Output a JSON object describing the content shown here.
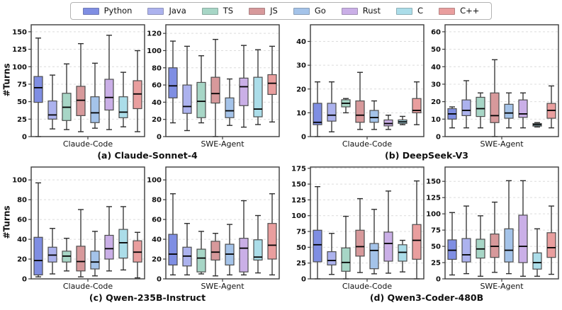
{
  "chart_data": {
    "type": "boxplot",
    "ylabel": "#Turns",
    "legend": {
      "position": "top-center",
      "items": [
        {
          "label": "Python",
          "color": "#7f8ee3"
        },
        {
          "label": "Java",
          "color": "#acb2ee"
        },
        {
          "label": "TS",
          "color": "#a7d6c6"
        },
        {
          "label": "JS",
          "color": "#d7999b"
        },
        {
          "label": "Go",
          "color": "#a4c3e9"
        },
        {
          "label": "Rust",
          "color": "#caafe7"
        },
        {
          "label": "C",
          "color": "#abdde9"
        },
        {
          "label": "C++",
          "color": "#e99e9e"
        }
      ]
    },
    "style": {
      "box_edge": "#4d4d4d",
      "median_color": "#000000",
      "whisker_color": "#2e2e2e",
      "grid_color": "#dcdcdc",
      "spine_color": "#3c3c3c"
    },
    "subplots": [
      {
        "title": "(a) Claude-Sonnet-4",
        "panels": [
          {
            "xlabel": "Claude-Code",
            "ymax": 160,
            "yticks": [
              0,
              25,
              50,
              75,
              100,
              125,
              150
            ],
            "boxes": [
              {
                "lang": "Python",
                "lo": 0,
                "q1": 49,
                "med": 70,
                "q3": 86,
                "hi": 141
              },
              {
                "lang": "Java",
                "lo": 11,
                "q1": 25,
                "med": 31,
                "q3": 51,
                "hi": 88
              },
              {
                "lang": "TS",
                "lo": 10,
                "q1": 23,
                "med": 42,
                "q3": 62,
                "hi": 104
              },
              {
                "lang": "JS",
                "lo": 7,
                "q1": 30,
                "med": 52,
                "q3": 72,
                "hi": 133
              },
              {
                "lang": "Go",
                "lo": 12,
                "q1": 20,
                "med": 34,
                "q3": 57,
                "hi": 105
              },
              {
                "lang": "Rust",
                "lo": 10,
                "q1": 38,
                "med": 56,
                "q3": 82,
                "hi": 145
              },
              {
                "lang": "C",
                "lo": 14,
                "q1": 27,
                "med": 35,
                "q3": 57,
                "hi": 92
              },
              {
                "lang": "C++",
                "lo": 7,
                "q1": 40,
                "med": 61,
                "q3": 80,
                "hi": 123
              }
            ]
          },
          {
            "xlabel": "SWE-Agent",
            "ymax": 130,
            "yticks": [
              0,
              20,
              40,
              60,
              80,
              100,
              120
            ],
            "boxes": [
              {
                "lang": "Python",
                "lo": 16,
                "q1": 45,
                "med": 59,
                "q3": 80,
                "hi": 111
              },
              {
                "lang": "Java",
                "lo": 7,
                "q1": 27,
                "med": 35,
                "q3": 60,
                "hi": 105
              },
              {
                "lang": "TS",
                "lo": 16,
                "q1": 22,
                "med": 41,
                "q3": 63,
                "hi": 94
              },
              {
                "lang": "JS",
                "lo": 0,
                "q1": 39,
                "med": 50,
                "q3": 69,
                "hi": 113
              },
              {
                "lang": "Go",
                "lo": 13,
                "q1": 22,
                "med": 30,
                "q3": 45,
                "hi": 67
              },
              {
                "lang": "Rust",
                "lo": 11,
                "q1": 36,
                "med": 58,
                "q3": 68,
                "hi": 106
              },
              {
                "lang": "C",
                "lo": 14,
                "q1": 23,
                "med": 32,
                "q3": 69,
                "hi": 101
              },
              {
                "lang": "C++",
                "lo": 17,
                "q1": 49,
                "med": 62,
                "q3": 72,
                "hi": 105
              }
            ]
          }
        ]
      },
      {
        "title": "(b) DeepSeek-V3",
        "panels": [
          {
            "xlabel": "Claude-Code",
            "ymax": 47,
            "yticks": [
              0,
              10,
              20,
              30,
              40
            ],
            "boxes": [
              {
                "lang": "Python",
                "lo": 0,
                "q1": 5,
                "med": 6,
                "q3": 14,
                "hi": 23
              },
              {
                "lang": "Java",
                "lo": 2,
                "q1": 6.5,
                "med": 9,
                "q3": 14,
                "hi": 23
              },
              {
                "lang": "TS",
                "lo": 10,
                "q1": 12.5,
                "med": 14,
                "q3": 15.5,
                "hi": 16
              },
              {
                "lang": "JS",
                "lo": 3,
                "q1": 6,
                "med": 9,
                "q3": 15,
                "hi": 27
              },
              {
                "lang": "Go",
                "lo": 3,
                "q1": 6,
                "med": 8,
                "q3": 11,
                "hi": 15
              },
              {
                "lang": "Rust",
                "lo": 3,
                "q1": 4.5,
                "med": 5.5,
                "q3": 7,
                "hi": 9
              },
              {
                "lang": "C",
                "lo": 5,
                "q1": 5.5,
                "med": 6.2,
                "q3": 7,
                "hi": 8.5
              },
              {
                "lang": "C++",
                "lo": 5,
                "q1": 10,
                "med": 11,
                "q3": 16,
                "hi": 23
              }
            ]
          },
          {
            "xlabel": "SWE-Agent",
            "ymax": 64,
            "yticks": [
              0,
              10,
              20,
              30,
              40,
              50,
              60
            ],
            "boxes": [
              {
                "lang": "Python",
                "lo": 5,
                "q1": 10,
                "med": 13,
                "q3": 16,
                "hi": 17
              },
              {
                "lang": "Java",
                "lo": 5,
                "q1": 12,
                "med": 15,
                "q3": 21,
                "hi": 32
              },
              {
                "lang": "TS",
                "lo": 5,
                "q1": 11.5,
                "med": 16,
                "q3": 22.5,
                "hi": 25
              },
              {
                "lang": "JS",
                "lo": 0,
                "q1": 8,
                "med": 12,
                "q3": 25,
                "hi": 44
              },
              {
                "lang": "Go",
                "lo": 5,
                "q1": 10.5,
                "med": 13.5,
                "q3": 18.5,
                "hi": 25
              },
              {
                "lang": "Rust",
                "lo": 5,
                "q1": 11,
                "med": 13,
                "q3": 21,
                "hi": 25
              },
              {
                "lang": "C",
                "lo": 5.5,
                "q1": 6,
                "med": 6.8,
                "q3": 7.5,
                "hi": 8
              },
              {
                "lang": "C++",
                "lo": 5,
                "q1": 10.5,
                "med": 15,
                "q3": 19,
                "hi": 29
              }
            ]
          }
        ]
      },
      {
        "title": "(c) Qwen-235B-Instruct",
        "panels": [
          {
            "xlabel": "Claude-Code",
            "ymax": 113,
            "yticks": [
              0,
              20,
              40,
              60,
              80,
              100
            ],
            "boxes": [
              {
                "lang": "Python",
                "lo": 2,
                "q1": 4,
                "med": 18.5,
                "q3": 42,
                "hi": 97
              },
              {
                "lang": "Java",
                "lo": 5,
                "q1": 17,
                "med": 24,
                "q3": 32,
                "hi": 51
              },
              {
                "lang": "TS",
                "lo": 8,
                "q1": 17,
                "med": 23,
                "q3": 28,
                "hi": 41
              },
              {
                "lang": "JS",
                "lo": 2,
                "q1": 8,
                "med": 17.5,
                "q3": 33,
                "hi": 70
              },
              {
                "lang": "Go",
                "lo": 3,
                "q1": 10,
                "med": 17,
                "q3": 28,
                "hi": 48
              },
              {
                "lang": "Rust",
                "lo": 8,
                "q1": 20,
                "med": 30.5,
                "q3": 44,
                "hi": 73
              },
              {
                "lang": "C",
                "lo": 9,
                "q1": 21,
                "med": 36.5,
                "q3": 50,
                "hi": 73
              },
              {
                "lang": "C++",
                "lo": 1,
                "q1": 17,
                "med": 27,
                "q3": 38.5,
                "hi": 47
              }
            ]
          },
          {
            "xlabel": "SWE-Agent",
            "ymax": 113,
            "yticks": [
              0,
              20,
              40,
              60,
              80,
              100
            ],
            "boxes": [
              {
                "lang": "Python",
                "lo": 4,
                "q1": 14,
                "med": 25,
                "q3": 45,
                "hi": 86
              },
              {
                "lang": "Java",
                "lo": 4,
                "q1": 13,
                "med": 23,
                "q3": 32,
                "hi": 56
              },
              {
                "lang": "TS",
                "lo": 5,
                "q1": 7,
                "med": 21,
                "q3": 30,
                "hi": 48
              },
              {
                "lang": "JS",
                "lo": 3,
                "q1": 19,
                "med": 27,
                "q3": 38,
                "hi": 46
              },
              {
                "lang": "Go",
                "lo": 4,
                "q1": 14,
                "med": 25,
                "q3": 35,
                "hi": 55
              },
              {
                "lang": "Rust",
                "lo": 4,
                "q1": 7,
                "med": 31,
                "q3": 41,
                "hi": 79
              },
              {
                "lang": "C",
                "lo": 6,
                "q1": 19,
                "med": 22,
                "q3": 39.5,
                "hi": 64
              },
              {
                "lang": "C++",
                "lo": 4,
                "q1": 20,
                "med": 34,
                "q3": 56,
                "hi": 86
              }
            ]
          }
        ]
      },
      {
        "title": "(d) Qwen3-Coder-480B",
        "panels": [
          {
            "xlabel": "Claude-Code",
            "ymax": 177,
            "yticks": [
              0,
              25,
              50,
              75,
              100,
              125,
              150,
              175
            ],
            "boxes": [
              {
                "lang": "Python",
                "lo": 0,
                "q1": 27,
                "med": 54,
                "q3": 77,
                "hi": 146
              },
              {
                "lang": "Java",
                "lo": 7,
                "q1": 22,
                "med": 29,
                "q3": 43,
                "hi": 72
              },
              {
                "lang": "TS",
                "lo": 0,
                "q1": 12,
                "med": 26,
                "q3": 49,
                "hi": 99
              },
              {
                "lang": "JS",
                "lo": 10,
                "q1": 36,
                "med": 51,
                "q3": 77,
                "hi": 127
              },
              {
                "lang": "Go",
                "lo": 8,
                "q1": 16,
                "med": 45,
                "q3": 56,
                "hi": 110
              },
              {
                "lang": "Rust",
                "lo": 9,
                "q1": 28,
                "med": 56,
                "q3": 74,
                "hi": 139
              },
              {
                "lang": "C",
                "lo": 11,
                "q1": 28,
                "med": 42,
                "q3": 54,
                "hi": 61
              },
              {
                "lang": "C++",
                "lo": 0,
                "q1": 31,
                "med": 61,
                "q3": 86,
                "hi": 155
              }
            ]
          },
          {
            "xlabel": "SWE-Agent",
            "ymax": 172,
            "yticks": [
              0,
              25,
              50,
              75,
              100,
              125,
              150
            ],
            "boxes": [
              {
                "lang": "Python",
                "lo": 6,
                "q1": 30,
                "med": 44,
                "q3": 60,
                "hi": 102
              },
              {
                "lang": "Java",
                "lo": 8,
                "q1": 26,
                "med": 37,
                "q3": 62,
                "hi": 112
              },
              {
                "lang": "TS",
                "lo": 4,
                "q1": 32,
                "med": 46,
                "q3": 61,
                "hi": 97
              },
              {
                "lang": "JS",
                "lo": 10,
                "q1": 33,
                "med": 50,
                "q3": 69,
                "hi": 118
              },
              {
                "lang": "Go",
                "lo": 8,
                "q1": 26,
                "med": 44,
                "q3": 77,
                "hi": 151
              },
              {
                "lang": "Rust",
                "lo": 4,
                "q1": 25,
                "med": 50,
                "q3": 98,
                "hi": 151
              },
              {
                "lang": "C",
                "lo": 4,
                "q1": 15,
                "med": 25,
                "q3": 40,
                "hi": 77
              },
              {
                "lang": "C++",
                "lo": 7,
                "q1": 33,
                "med": 48,
                "q3": 71,
                "hi": 112
              }
            ]
          }
        ]
      }
    ]
  }
}
